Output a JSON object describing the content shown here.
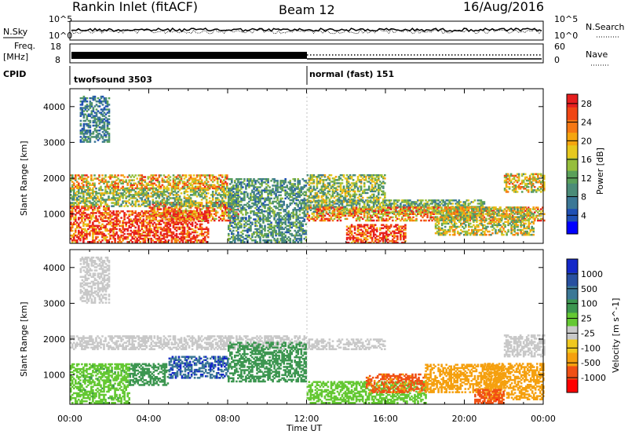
{
  "header": {
    "title": "Rankin Inlet (fitACF)",
    "beam": "Beam 12",
    "date": "16/Aug/2016"
  },
  "panels": {
    "noise": {
      "left_label": "N.Sky",
      "right_label": "N.Search",
      "left_ticks": [
        "10^5",
        "10^0"
      ],
      "right_ticks": [
        "10^5",
        "10^0"
      ]
    },
    "freq": {
      "left_label_1": "Freq.",
      "left_label_2": "[MHz]",
      "right_label": "Nave",
      "left_ticks": [
        "18",
        "8"
      ],
      "right_ticks": [
        "60",
        "0"
      ]
    },
    "cpid": {
      "label": "CPID",
      "mode_1": "twofsound 3503",
      "mode_2": "normal (fast) 151"
    }
  },
  "colors": {
    "power": [
      "#0000ff",
      "#2050b4",
      "#3c7896",
      "#4b8c78",
      "#5aa05a",
      "#96be3c",
      "#e6c81e",
      "#f5a50f",
      "#f57814",
      "#f04614",
      "#e61e1e"
    ],
    "velocity": [
      "#ff0000",
      "#f05014",
      "#f5a00f",
      "#f0c81e",
      "#c8c8c8",
      "#64c832",
      "#3c9650",
      "#3c7896",
      "#2850a0",
      "#1428c8"
    ]
  },
  "chart_data": [
    {
      "type": "heatmap",
      "title": "Power",
      "ylabel": "Slant Range [km]",
      "xlabel": "Time UT",
      "x_ticks": [
        "00:00",
        "04:00",
        "08:00",
        "12:00",
        "16:00",
        "20:00",
        "00:00"
      ],
      "y_ticks": [
        "1000",
        "2000",
        "3000",
        "4000"
      ],
      "ylim": [
        180,
        4500
      ],
      "colorbar": {
        "label": "Power [dB]",
        "ticks": [
          "4",
          "8",
          "12",
          "16",
          "20",
          "24",
          "28"
        ],
        "range": [
          0,
          30
        ]
      },
      "regions": [
        {
          "t": [
            0.0,
            2.0
          ],
          "r": [
            200,
            1200
          ],
          "v": 26
        },
        {
          "t": [
            2.0,
            7.0
          ],
          "r": [
            200,
            1100
          ],
          "v": 28
        },
        {
          "t": [
            4.0,
            8.5
          ],
          "r": [
            800,
            1300
          ],
          "v": 24
        },
        {
          "t": [
            0.0,
            8.5
          ],
          "r": [
            1200,
            1700
          ],
          "v": 14
        },
        {
          "t": [
            0.0,
            8.0
          ],
          "r": [
            1700,
            2100
          ],
          "v": 20
        },
        {
          "t": [
            8.0,
            12.0
          ],
          "r": [
            200,
            2000
          ],
          "v": 10
        },
        {
          "t": [
            0.5,
            2.0
          ],
          "r": [
            3000,
            4300
          ],
          "v": 8
        },
        {
          "t": [
            12.0,
            21.0
          ],
          "r": [
            1000,
            1400
          ],
          "v": 12
        },
        {
          "t": [
            12.0,
            16.0
          ],
          "r": [
            1300,
            2100
          ],
          "v": 14
        },
        {
          "t": [
            14.0,
            17.0
          ],
          "r": [
            180,
            700
          ],
          "v": 28
        },
        {
          "t": [
            12.0,
            24.0
          ],
          "r": [
            800,
            1200
          ],
          "v": 22
        },
        {
          "t": [
            22.0,
            24.0
          ],
          "r": [
            1600,
            2100
          ],
          "v": 18
        },
        {
          "t": [
            18.5,
            23.5
          ],
          "r": [
            400,
            1200
          ],
          "v": 16
        }
      ]
    },
    {
      "type": "heatmap",
      "title": "Velocity",
      "ylabel": "Slant Range [km]",
      "xlabel": "Time UT",
      "x_ticks": [
        "00:00",
        "04:00",
        "08:00",
        "12:00",
        "16:00",
        "20:00",
        "00:00"
      ],
      "y_ticks": [
        "1000",
        "2000",
        "3000",
        "4000"
      ],
      "ylim": [
        180,
        4500
      ],
      "colorbar": {
        "label": "Velocity [m s^-1]",
        "ticks": [
          "1000",
          "500",
          "100",
          "25",
          "-25",
          "-100",
          "-500",
          "-1000"
        ]
      },
      "regions": [
        {
          "t": [
            0.0,
            12.0
          ],
          "r": [
            1700,
            2100
          ],
          "v": 0
        },
        {
          "t": [
            0.0,
            3.0
          ],
          "r": [
            200,
            1300
          ],
          "v": 80
        },
        {
          "t": [
            3.0,
            5.0
          ],
          "r": [
            700,
            1300
          ],
          "v": 200
        },
        {
          "t": [
            5.0,
            8.0
          ],
          "r": [
            900,
            1500
          ],
          "v": 900
        },
        {
          "t": [
            8.0,
            12.0
          ],
          "r": [
            800,
            1900
          ],
          "v": 300
        },
        {
          "t": [
            0.5,
            2.0
          ],
          "r": [
            3000,
            4300
          ],
          "v": 0
        },
        {
          "t": [
            12.0,
            16.0
          ],
          "r": [
            1700,
            2000
          ],
          "v": 0
        },
        {
          "t": [
            12.0,
            18.0
          ],
          "r": [
            200,
            800
          ],
          "v": 60
        },
        {
          "t": [
            15.0,
            18.0
          ],
          "r": [
            500,
            1000
          ],
          "v": -600
        },
        {
          "t": [
            18.0,
            22.0
          ],
          "r": [
            500,
            1300
          ],
          "v": -200
        },
        {
          "t": [
            21.0,
            24.0
          ],
          "r": [
            300,
            1300
          ],
          "v": -150
        },
        {
          "t": [
            22.0,
            24.0
          ],
          "r": [
            1500,
            2100
          ],
          "v": 0
        },
        {
          "t": [
            20.5,
            22.0
          ],
          "r": [
            200,
            600
          ],
          "v": -800
        }
      ]
    }
  ]
}
